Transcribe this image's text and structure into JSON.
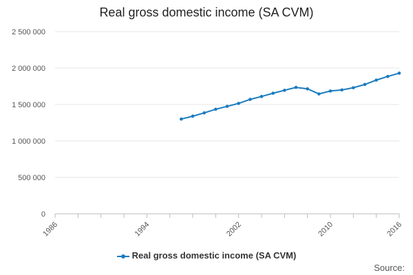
{
  "chart_data": {
    "type": "line",
    "title": "Real gross domestic income (SA CVM)",
    "xlabel": "",
    "ylabel": "",
    "xlim": [
      1986,
      2016
    ],
    "ylim": [
      0,
      2500000
    ],
    "x_ticks": [
      "1986",
      "1994",
      "2002",
      "2010",
      "2016"
    ],
    "y_ticks": [
      "0",
      "500 000",
      "1 000 000",
      "1 500 000",
      "2 000 000",
      "2 500 000"
    ],
    "y_tick_values": [
      0,
      500000,
      1000000,
      1500000,
      2000000,
      2500000
    ],
    "grid": true,
    "legend_position": "bottom",
    "series": [
      {
        "name": "Real gross domestic income (SA CVM)",
        "color": "#1a7bbf",
        "x": [
          1997,
          1998,
          1999,
          2000,
          2001,
          2002,
          2003,
          2004,
          2005,
          2006,
          2007,
          2008,
          2009,
          2010,
          2011,
          2012,
          2013,
          2014,
          2015,
          2016
        ],
        "values": [
          1300000,
          1340000,
          1385000,
          1435000,
          1475000,
          1515000,
          1570000,
          1610000,
          1655000,
          1695000,
          1735000,
          1715000,
          1645000,
          1685000,
          1700000,
          1730000,
          1775000,
          1835000,
          1885000,
          1930000
        ]
      }
    ]
  },
  "footer": {
    "source_label": "Source:"
  }
}
